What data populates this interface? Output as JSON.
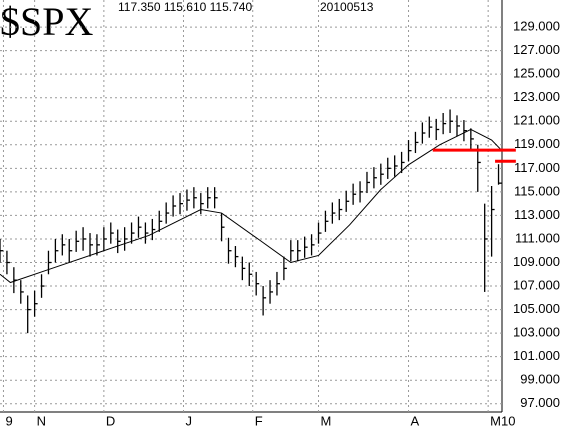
{
  "chart_data": {
    "type": "ohlc",
    "title": "$SPX",
    "header_values": "117.350 115.610 115.740",
    "header_date": "20100513",
    "x": [
      0,
      2,
      4,
      6,
      8,
      10,
      12,
      14,
      16,
      18,
      20,
      22,
      24,
      26,
      28,
      30,
      32,
      34,
      36,
      38,
      40,
      42,
      44,
      46,
      48,
      50,
      52,
      54,
      56,
      58,
      60,
      62,
      64,
      66,
      68,
      70,
      72,
      74,
      76,
      78,
      80,
      82,
      84,
      86,
      88,
      90,
      92,
      94,
      96,
      98,
      100,
      102,
      104,
      106,
      108,
      110,
      112,
      114,
      116,
      118,
      120,
      122,
      124,
      126,
      128,
      130,
      132,
      134,
      136,
      138,
      140,
      142,
      144
    ],
    "high": [
      111,
      110,
      108.6,
      107.5,
      106.2,
      106.6,
      108,
      110,
      111,
      111.4,
      111,
      111.7,
      112,
      111.5,
      111.4,
      112,
      112.4,
      111.8,
      112,
      112.4,
      112.9,
      112.4,
      112.7,
      113.4,
      114.1,
      114.7,
      114.9,
      115.2,
      115.4,
      114.9,
      115.4,
      115.4,
      113.2,
      111.1,
      110.4,
      109.5,
      109,
      108.2,
      107,
      107.5,
      108.2,
      109.5,
      110.9,
      110.9,
      111.2,
      111.4,
      112.4,
      113.4,
      114.1,
      114.4,
      115.1,
      115.7,
      115.9,
      116.7,
      117.1,
      117.4,
      117.9,
      118.1,
      118.4,
      119.4,
      120.1,
      120.9,
      121.4,
      121.2,
      121.7,
      122,
      121.5,
      121.1,
      120.4,
      119,
      114,
      115.5,
      117.35
    ],
    "low": [
      109,
      108,
      106.4,
      105.5,
      103,
      104.4,
      106,
      108,
      109,
      109.6,
      109,
      109.9,
      110,
      109.5,
      109.6,
      110,
      110.6,
      109.8,
      110,
      110.6,
      111.1,
      110.6,
      110.9,
      111.6,
      112.3,
      112.9,
      113.1,
      113.4,
      113.6,
      113.1,
      113.6,
      113.6,
      110.8,
      108.9,
      108.6,
      107.5,
      107,
      106.2,
      104.5,
      105.5,
      106.2,
      107.5,
      109.1,
      109.1,
      109.4,
      109.6,
      110.6,
      111.6,
      112.3,
      112.6,
      113.3,
      113.9,
      114.1,
      114.9,
      115.3,
      115.6,
      116.1,
      116.3,
      116.6,
      117.6,
      118.3,
      119.1,
      119.6,
      119.4,
      119.9,
      120,
      119.7,
      119.3,
      118.6,
      115,
      106.5,
      109.5,
      115.61
    ],
    "close": [
      110,
      109,
      107.5,
      106.5,
      105,
      105.5,
      107,
      109,
      110,
      110.5,
      110,
      110.8,
      111,
      110.5,
      110.5,
      111,
      111.5,
      110.8,
      111,
      111.5,
      112,
      111.5,
      111.8,
      112.5,
      113.2,
      113.8,
      114,
      114.3,
      114.5,
      114,
      114.5,
      114.5,
      112,
      110,
      109.5,
      108.5,
      108,
      107.2,
      106,
      106.5,
      107.2,
      108.5,
      110,
      110,
      110.3,
      110.5,
      111.5,
      112.5,
      113.2,
      113.5,
      114.2,
      114.8,
      115,
      115.8,
      116.2,
      116.5,
      117,
      117.2,
      117.5,
      118.5,
      119.2,
      120,
      120.5,
      120.3,
      120.8,
      121,
      120.6,
      120.2,
      119.5,
      117.5,
      111,
      113.5,
      115.74
    ],
    "bar_color": "#000000",
    "average": {
      "color": "#000000",
      "x": [
        0,
        3,
        14,
        29,
        43,
        58,
        64,
        75,
        84,
        92,
        101,
        110,
        118,
        127,
        136,
        142,
        145
      ],
      "values": [
        108,
        107.3,
        108.4,
        109.9,
        111.3,
        113.5,
        113.2,
        110.9,
        109,
        109.6,
        112.2,
        115.2,
        117.3,
        119,
        120.3,
        119.4,
        118.5
      ]
    },
    "lines": [
      {
        "color": "#ff0000",
        "value": 118.55,
        "x": [
          125,
          149
        ]
      },
      {
        "color": "#ff0000",
        "value": 117.6,
        "x": [
          143,
          149
        ]
      }
    ],
    "xlim": [
      0,
      145
    ],
    "ylim": [
      96.3,
      131.3
    ],
    "xticks": [
      {
        "value": 1,
        "label": "9"
      },
      {
        "value": 10,
        "label": "N"
      },
      {
        "value": 30,
        "label": "D"
      },
      {
        "value": 53,
        "label": "J"
      },
      {
        "value": 73,
        "label": "F"
      },
      {
        "value": 92,
        "label": "M"
      },
      {
        "value": 118,
        "label": "A"
      },
      {
        "value": 141,
        "label": "M10"
      }
    ],
    "yticks": [
      {
        "value": 97,
        "label": "97.000"
      },
      {
        "value": 99,
        "label": "99.000"
      },
      {
        "value": 101,
        "label": "101.000"
      },
      {
        "value": 103,
        "label": "103.000"
      },
      {
        "value": 105,
        "label": "105.000"
      },
      {
        "value": 107,
        "label": "107.000"
      },
      {
        "value": 109,
        "label": "109.000"
      },
      {
        "value": 111,
        "label": "111.000"
      },
      {
        "value": 113,
        "label": "113.000"
      },
      {
        "value": 115,
        "label": "115.000"
      },
      {
        "value": 117,
        "label": "117.000"
      },
      {
        "value": 119,
        "label": "119.000"
      },
      {
        "value": 121,
        "label": "121.000"
      },
      {
        "value": 123,
        "label": "123.000"
      },
      {
        "value": 125,
        "label": "125.000"
      },
      {
        "value": 127,
        "label": "127.000"
      },
      {
        "value": 129,
        "label": "129.000"
      }
    ],
    "grid": true
  }
}
